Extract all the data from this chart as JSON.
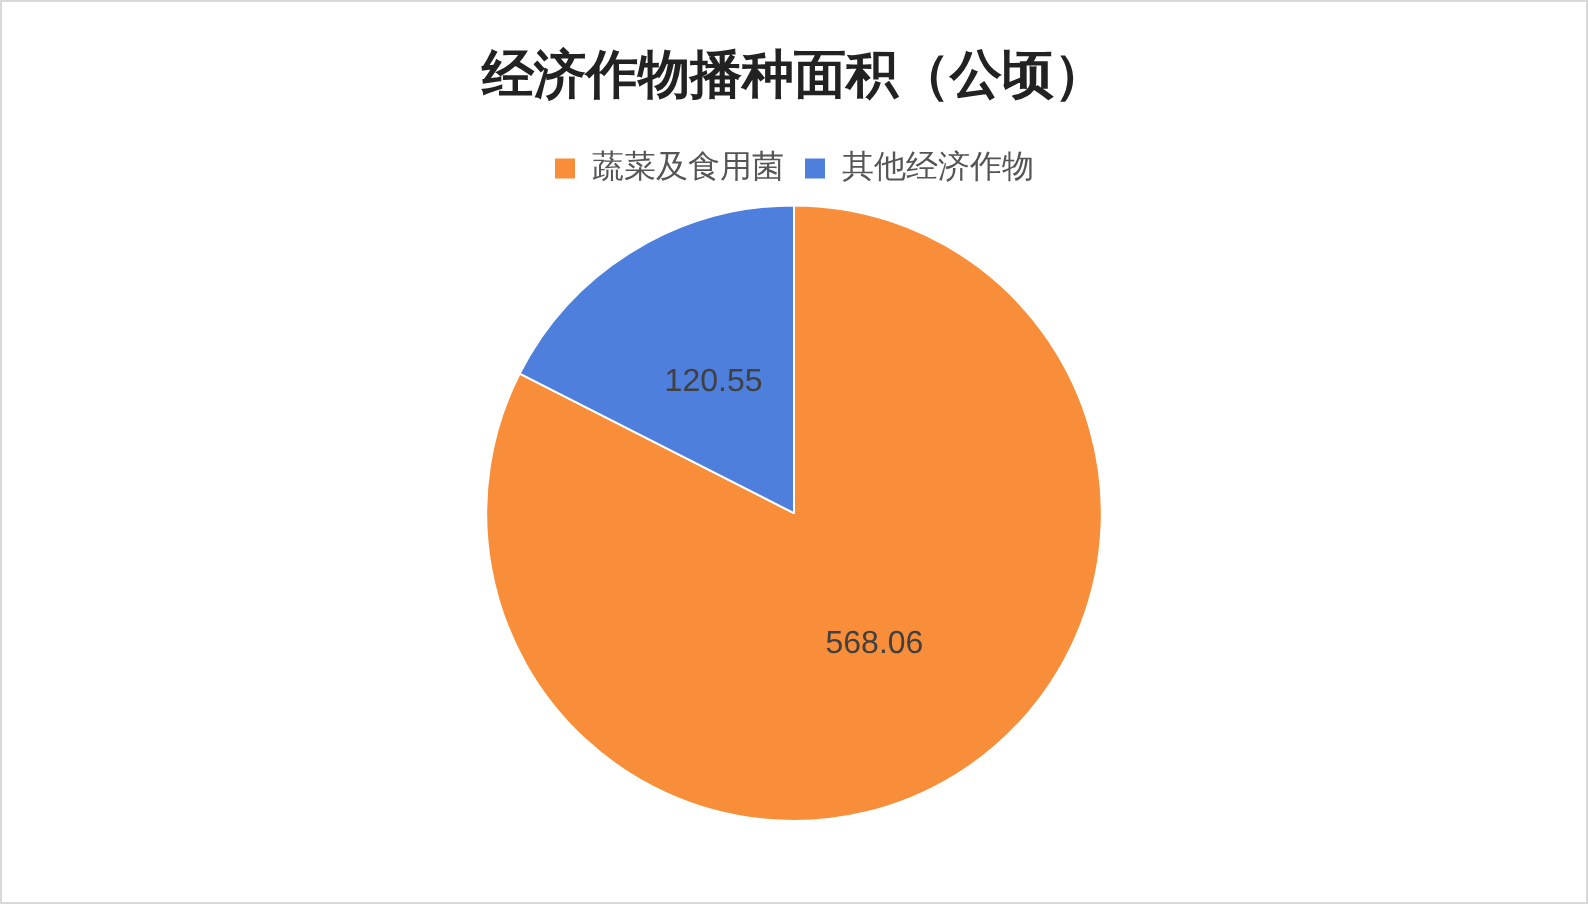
{
  "chart_data": {
    "type": "pie",
    "title": "经济作物播种面积（公顷）",
    "categories": [
      "蔬菜及食用菌",
      "其他经济作物"
    ],
    "values": [
      568.06,
      120.55
    ],
    "colors": [
      "#f98e3a",
      "#4f7fdc"
    ],
    "data_labels": true,
    "legend": "top"
  }
}
